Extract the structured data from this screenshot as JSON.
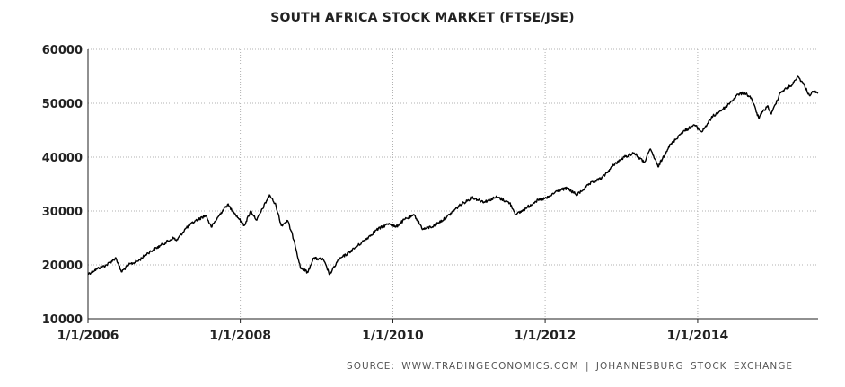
{
  "chart_data": {
    "type": "line",
    "title": "SOUTH AFRICA STOCK MARKET (FTSE/JSE)",
    "source": "SOURCE:  WWW.TRADINGECONOMICS.COM  |  JOHANNESBURG STOCK EXCHANGE",
    "xlabel": "",
    "ylabel": "",
    "ylim": [
      10000,
      60000
    ],
    "xlim": [
      "2006-01-01",
      "2015-08-01"
    ],
    "yticks": [
      10000,
      20000,
      30000,
      40000,
      50000,
      60000
    ],
    "ytick_labels": [
      "10000",
      "20000",
      "30000",
      "40000",
      "50000",
      "60000"
    ],
    "xticks": [
      "2006-01-01",
      "2008-01-01",
      "2010-01-01",
      "2012-01-01",
      "2014-01-01"
    ],
    "xtick_labels": [
      "1/1/2006",
      "1/1/2008",
      "1/1/2010",
      "1/1/2012",
      "1/1/2014"
    ],
    "grid": true,
    "line_color": "#000000",
    "grid_color": "#b0b0b0",
    "series": [
      {
        "values": [
          [
            "2006-01-01",
            18300
          ],
          [
            "2006-02-15",
            19300
          ],
          [
            "2006-04-01",
            20000
          ],
          [
            "2006-05-15",
            21300
          ],
          [
            "2006-06-10",
            18700
          ],
          [
            "2006-07-15",
            20000
          ],
          [
            "2006-09-01",
            20800
          ],
          [
            "2006-10-15",
            22200
          ],
          [
            "2006-12-15",
            23600
          ],
          [
            "2007-02-15",
            25000
          ],
          [
            "2007-03-01",
            24500
          ],
          [
            "2007-04-15",
            26800
          ],
          [
            "2007-06-01",
            28200
          ],
          [
            "2007-07-20",
            29200
          ],
          [
            "2007-08-15",
            27000
          ],
          [
            "2007-10-01",
            29700
          ],
          [
            "2007-11-01",
            31200
          ],
          [
            "2007-12-01",
            29800
          ],
          [
            "2008-01-20",
            27300
          ],
          [
            "2008-02-20",
            30000
          ],
          [
            "2008-03-20",
            28300
          ],
          [
            "2008-05-20",
            33000
          ],
          [
            "2008-06-20",
            31000
          ],
          [
            "2008-07-15",
            27300
          ],
          [
            "2008-08-15",
            28200
          ],
          [
            "2008-09-15",
            24500
          ],
          [
            "2008-10-15",
            19500
          ],
          [
            "2008-11-20",
            18600
          ],
          [
            "2008-12-15",
            21200
          ],
          [
            "2009-02-01",
            21000
          ],
          [
            "2009-03-05",
            18200
          ],
          [
            "2009-04-15",
            20900
          ],
          [
            "2009-06-01",
            22200
          ],
          [
            "2009-07-15",
            23500
          ],
          [
            "2009-09-01",
            25000
          ],
          [
            "2009-10-15",
            26500
          ],
          [
            "2009-12-15",
            27700
          ],
          [
            "2010-01-15",
            27000
          ],
          [
            "2010-03-01",
            28500
          ],
          [
            "2010-04-15",
            29200
          ],
          [
            "2010-05-25",
            26600
          ],
          [
            "2010-07-15",
            27200
          ],
          [
            "2010-09-15",
            28800
          ],
          [
            "2010-11-15",
            31000
          ],
          [
            "2011-01-15",
            32500
          ],
          [
            "2011-03-15",
            31700
          ],
          [
            "2011-05-15",
            32600
          ],
          [
            "2011-07-15",
            31500
          ],
          [
            "2011-08-15",
            29300
          ],
          [
            "2011-10-01",
            30500
          ],
          [
            "2011-11-15",
            31800
          ],
          [
            "2012-01-15",
            32500
          ],
          [
            "2012-03-01",
            33800
          ],
          [
            "2012-04-15",
            34200
          ],
          [
            "2012-06-01",
            33000
          ],
          [
            "2012-08-01",
            35000
          ],
          [
            "2012-10-01",
            36200
          ],
          [
            "2012-12-01",
            38800
          ],
          [
            "2013-01-15",
            40000
          ],
          [
            "2013-03-01",
            40800
          ],
          [
            "2013-04-20",
            39000
          ],
          [
            "2013-05-20",
            41500
          ],
          [
            "2013-06-25",
            38200
          ],
          [
            "2013-08-15",
            41900
          ],
          [
            "2013-10-15",
            44500
          ],
          [
            "2013-12-15",
            46000
          ],
          [
            "2014-01-20",
            44700
          ],
          [
            "2014-03-15",
            47600
          ],
          [
            "2014-05-15",
            49300
          ],
          [
            "2014-07-15",
            51700
          ],
          [
            "2014-08-15",
            51900
          ],
          [
            "2014-09-15",
            51000
          ],
          [
            "2014-10-20",
            47300
          ],
          [
            "2014-12-01",
            49500
          ],
          [
            "2014-12-20",
            48000
          ],
          [
            "2015-02-01",
            52000
          ],
          [
            "2015-04-01",
            53500
          ],
          [
            "2015-04-25",
            55000
          ],
          [
            "2015-05-20",
            53800
          ],
          [
            "2015-06-20",
            51500
          ],
          [
            "2015-07-10",
            52200
          ],
          [
            "2015-07-31",
            51800
          ]
        ]
      }
    ]
  }
}
